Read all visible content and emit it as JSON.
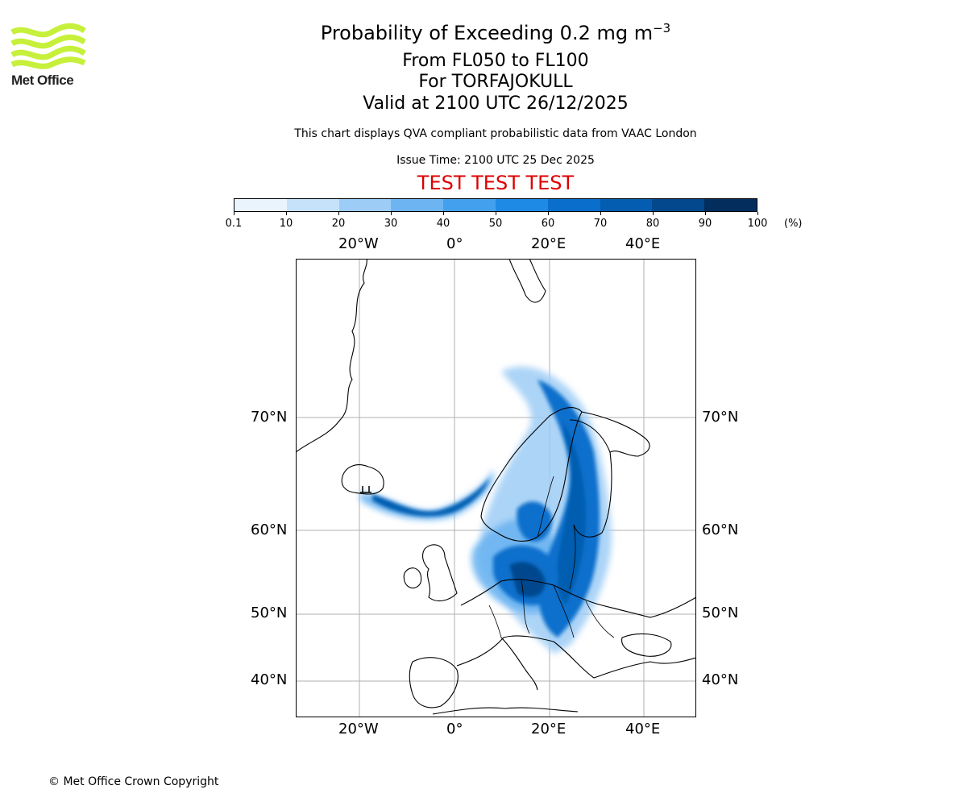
{
  "header": {
    "title_main": "Probability of Exceeding 0.2 mg m",
    "title_superscript": "−3",
    "levels": "From FL050 to FL100",
    "volcano": "For TORFAJOKULL",
    "valid": "Valid at 2100 UTC 26/12/2025",
    "description": "This chart displays QVA compliant probabilistic data from VAAC London",
    "issue_time": "Issue Time: 2100 UTC 25 Dec 2025",
    "test_banner": "TEST TEST TEST",
    "test_color": "#dd0000"
  },
  "logo": {
    "text": "Met Office",
    "color": "#c6f03a"
  },
  "colorbar": {
    "ticks": [
      "0.1",
      "10",
      "20",
      "30",
      "40",
      "50",
      "60",
      "70",
      "80",
      "90",
      "100"
    ],
    "unit": "(%)",
    "colors": [
      "#eaf4fd",
      "#c6e2fa",
      "#9dcdf6",
      "#6db5f2",
      "#43a0ee",
      "#1f8ae6",
      "#0a6fcc",
      "#045db0",
      "#03478d",
      "#022d5c"
    ]
  },
  "map": {
    "lon_labels": [
      "20°W",
      "0°",
      "20°E",
      "40°E"
    ],
    "lat_labels": [
      "70°N",
      "60°N",
      "50°N",
      "40°N"
    ]
  },
  "chart_data": {
    "type": "heatmap",
    "title": "Probability of Exceeding 0.2 mg m−3",
    "variable": "probability of ash concentration exceedance",
    "units": "%",
    "levels": "FL050 to FL100",
    "source_location": "TORFAJOKULL",
    "color_scale_bins": [
      0.1,
      10,
      20,
      30,
      40,
      50,
      60,
      70,
      80,
      90,
      100
    ],
    "lon_ticks": [
      -20,
      0,
      20,
      40
    ],
    "lat_ticks": [
      70,
      60,
      50,
      40
    ],
    "approx_extent": {
      "lon": [
        -33,
        51
      ],
      "lat": [
        35,
        78
      ]
    }
  },
  "footer": {
    "copyright": "© Met Office Crown Copyright"
  }
}
